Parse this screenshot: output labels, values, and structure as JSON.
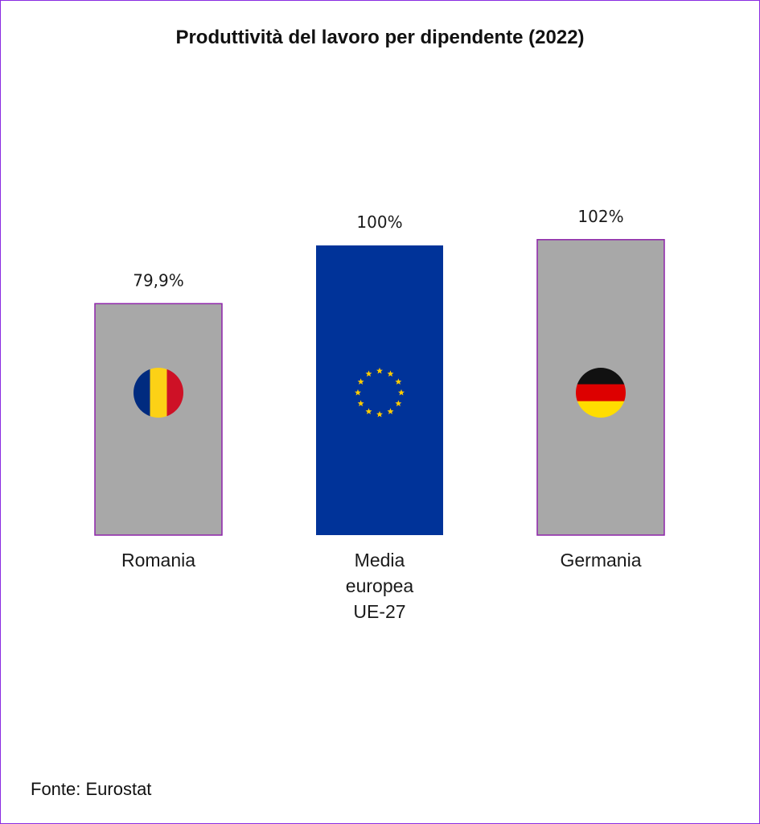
{
  "chart": {
    "title": "Produttività del lavoro per dipendente (2022)",
    "source": "Fonte: Eurostat"
  },
  "chart_data": {
    "type": "bar",
    "title": "Produttività del lavoro per dipendente (2022)",
    "categories": [
      "Romania",
      "Media europea UE-27",
      "Germania"
    ],
    "category_label_lines": [
      [
        "Romania"
      ],
      [
        "Media",
        "europea",
        "UE-27"
      ],
      [
        "Germania"
      ]
    ],
    "values": [
      79.9,
      100,
      102
    ],
    "value_labels": [
      "79,9%",
      "100%",
      "102%"
    ],
    "bar_colors": [
      "#a8a8a8",
      "#003399",
      "#a8a8a8"
    ],
    "bar_outline_color": "#8e24aa",
    "flag_icons": [
      "romania-flag-icon",
      "eu-flag-icon",
      "germany-flag-icon"
    ],
    "grid": false,
    "legend": "none",
    "ylim": [
      0,
      130
    ]
  }
}
